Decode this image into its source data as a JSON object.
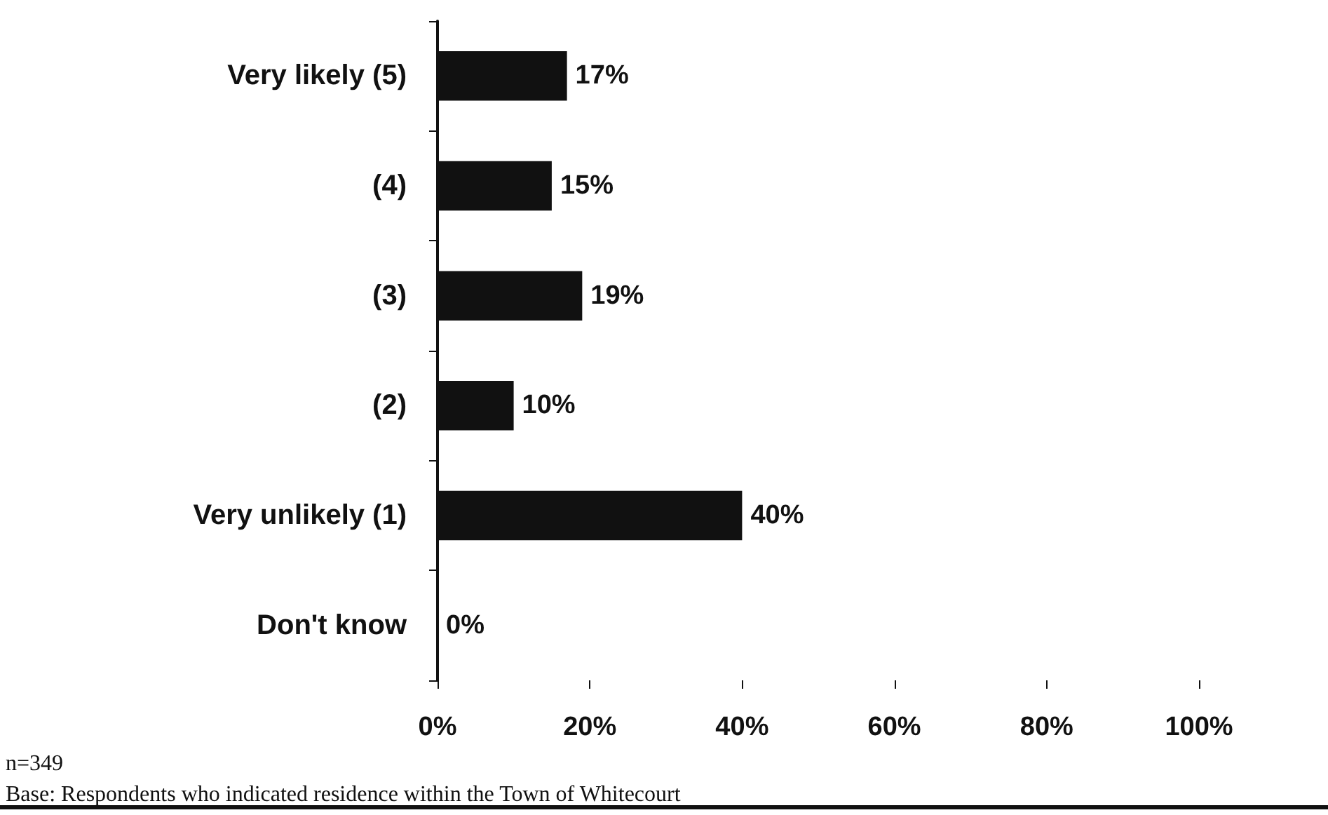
{
  "chart_data": {
    "type": "bar",
    "orientation": "horizontal",
    "categories": [
      "Very likely (5)",
      "(4)",
      "(3)",
      "(2)",
      "Very unlikely (1)",
      "Don't know"
    ],
    "values": [
      17,
      15,
      19,
      10,
      40,
      0
    ],
    "value_labels": [
      "17%",
      "15%",
      "19%",
      "10%",
      "40%",
      "0%"
    ],
    "color": "#111111",
    "xlim": [
      0,
      100
    ],
    "xticks": [
      {
        "value": 0,
        "label": "0%"
      },
      {
        "value": 20,
        "label": "20%"
      },
      {
        "value": 40,
        "label": "40%"
      },
      {
        "value": 60,
        "label": "60%"
      },
      {
        "value": 80,
        "label": "80%"
      },
      {
        "value": 100,
        "label": "100%"
      }
    ],
    "grid": false,
    "annotations": [
      "n=349",
      "Base: Respondents who indicated residence within the Town of Whitecourt"
    ]
  }
}
